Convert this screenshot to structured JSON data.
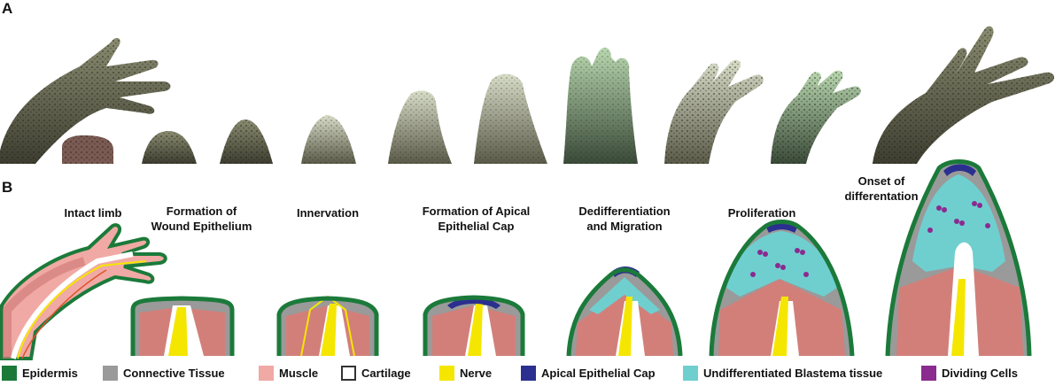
{
  "panels": {
    "a_label": "A",
    "b_label": "B"
  },
  "stages": [
    {
      "id": "intact",
      "title": "Intact limb"
    },
    {
      "id": "wound",
      "title": "Formation of\nWound Epithelium"
    },
    {
      "id": "innervation",
      "title": "Innervation"
    },
    {
      "id": "aec",
      "title": "Formation of Apical\nEpithelial Cap"
    },
    {
      "id": "dediff",
      "title": "Dedifferentiation\nand Migration"
    },
    {
      "id": "prolif",
      "title": "Proliferation"
    },
    {
      "id": "onset",
      "title": "Onset of\ndifferentation"
    }
  ],
  "legend": [
    {
      "label": "Epidermis",
      "color": "#1b7a3a"
    },
    {
      "label": "Connective Tissue",
      "color": "#9a9a9a"
    },
    {
      "label": "Muscle",
      "color": "#f0a9a4"
    },
    {
      "label": "Cartilage",
      "color": "#ffffff"
    },
    {
      "label": "Nerve",
      "color": "#f5e600"
    },
    {
      "label": "Apical Epithelial Cap",
      "color": "#2b2f8f"
    },
    {
      "label": "Undifferentiated Blastema tissue",
      "color": "#6fcfcf"
    },
    {
      "label": "Dividing Cells",
      "color": "#8b2a8f"
    }
  ],
  "colors": {
    "epidermis": "#1b7a3a",
    "connective": "#9a9a9a",
    "muscle": "#d27f7a",
    "muscle_light": "#f0a9a4",
    "nerve": "#f5e600",
    "aec": "#2b2f8f",
    "blastema": "#6fcfcf",
    "dividing": "#8b2a8f",
    "skin_photo": "#4a4a3c"
  }
}
